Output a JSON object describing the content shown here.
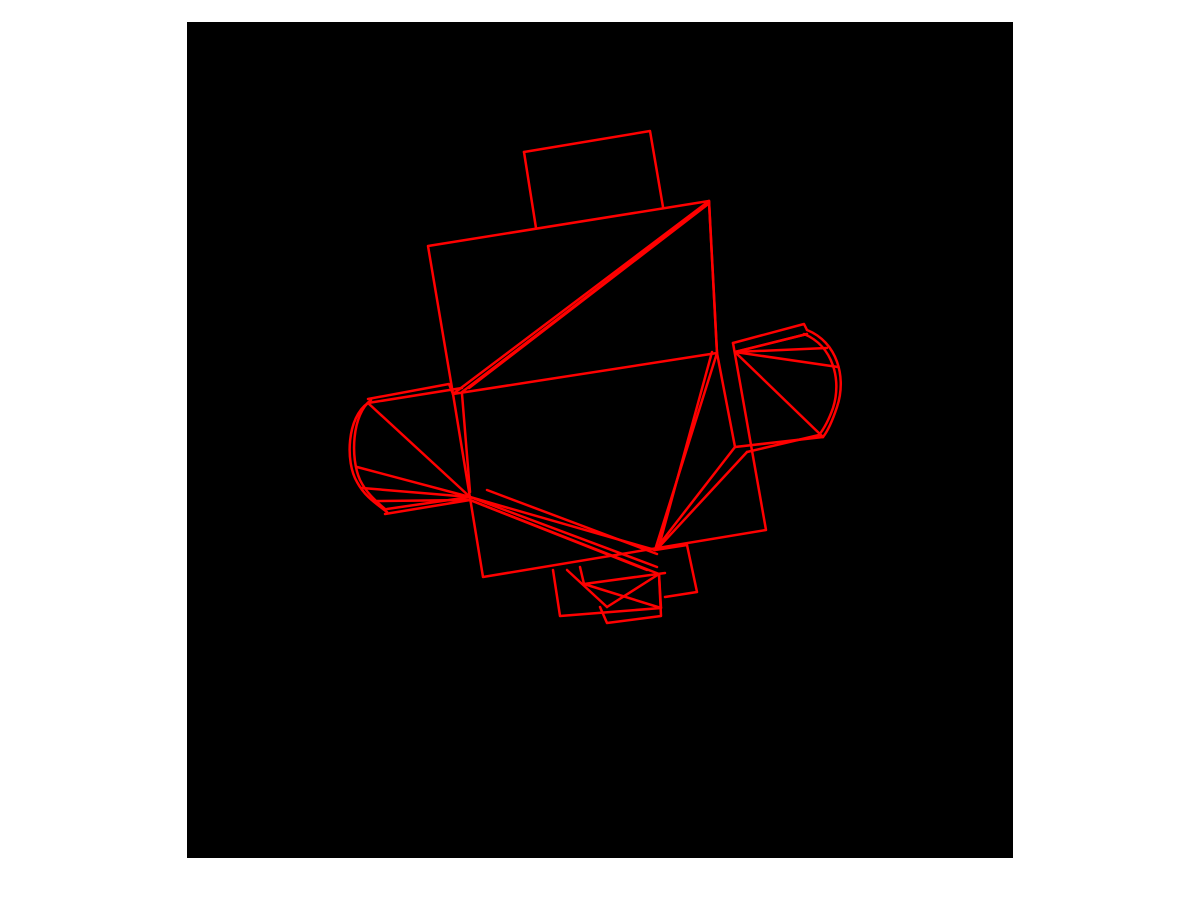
{
  "figure": {
    "background_color": "#ffffff",
    "axes_background_color": "#000000",
    "stroke_color": "#ff0000",
    "description_visible_text": ""
  },
  "wireframe": {
    "mesh": "package-net-wireframe",
    "shapes": [
      "top-tab",
      "main-square",
      "left-cap",
      "right-cap",
      "bottom-tabs"
    ]
  }
}
